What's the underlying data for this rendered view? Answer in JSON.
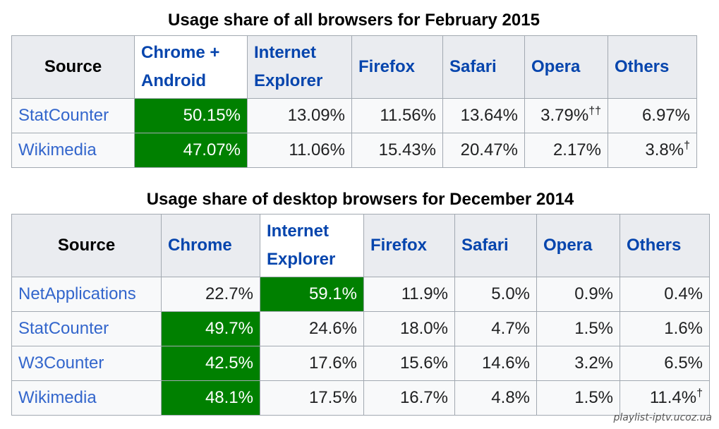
{
  "table1": {
    "caption": "Usage share of all browsers for February 2015",
    "headers": {
      "source": "Source",
      "chrome": "Chrome + Android",
      "ie": "Internet Explorer",
      "firefox": "Firefox",
      "safari": "Safari",
      "opera": "Opera",
      "others": "Others"
    },
    "rows": [
      {
        "source": "StatCounter",
        "chrome": "50.15%",
        "ie": "13.09%",
        "firefox": "11.56%",
        "safari": "13.64%",
        "opera": "3.79%",
        "opera_note": "††",
        "others": "6.97%",
        "others_note": ""
      },
      {
        "source": "Wikimedia",
        "chrome": "47.07%",
        "ie": "11.06%",
        "firefox": "15.43%",
        "safari": "20.47%",
        "opera": "2.17%",
        "opera_note": "",
        "others": "3.8%",
        "others_note": "†"
      }
    ],
    "highlight_color": "#008000"
  },
  "table2": {
    "caption": "Usage share of desktop browsers for December 2014",
    "headers": {
      "source": "Source",
      "chrome": "Chrome",
      "ie": "Internet Explorer",
      "firefox": "Firefox",
      "safari": "Safari",
      "opera": "Opera",
      "others": "Others"
    },
    "rows": [
      {
        "source": "NetApplications",
        "chrome": "22.7%",
        "ie": "59.1%",
        "firefox": "11.9%",
        "safari": "5.0%",
        "opera": "0.9%",
        "others": "0.4%",
        "others_note": ""
      },
      {
        "source": "StatCounter",
        "chrome": "49.7%",
        "ie": "24.6%",
        "firefox": "18.0%",
        "safari": "4.7%",
        "opera": "1.5%",
        "others": "1.6%",
        "others_note": ""
      },
      {
        "source": "W3Counter",
        "chrome": "42.5%",
        "ie": "17.6%",
        "firefox": "15.6%",
        "safari": "14.6%",
        "opera": "3.2%",
        "others": "6.5%",
        "others_note": ""
      },
      {
        "source": "Wikimedia",
        "chrome": "48.1%",
        "ie": "17.5%",
        "firefox": "16.7%",
        "safari": "4.8%",
        "opera": "1.5%",
        "others": "11.4%",
        "others_note": "†"
      }
    ],
    "highlight_color": "#008000"
  },
  "watermark": "playlist-iptv.ucoz.ua"
}
